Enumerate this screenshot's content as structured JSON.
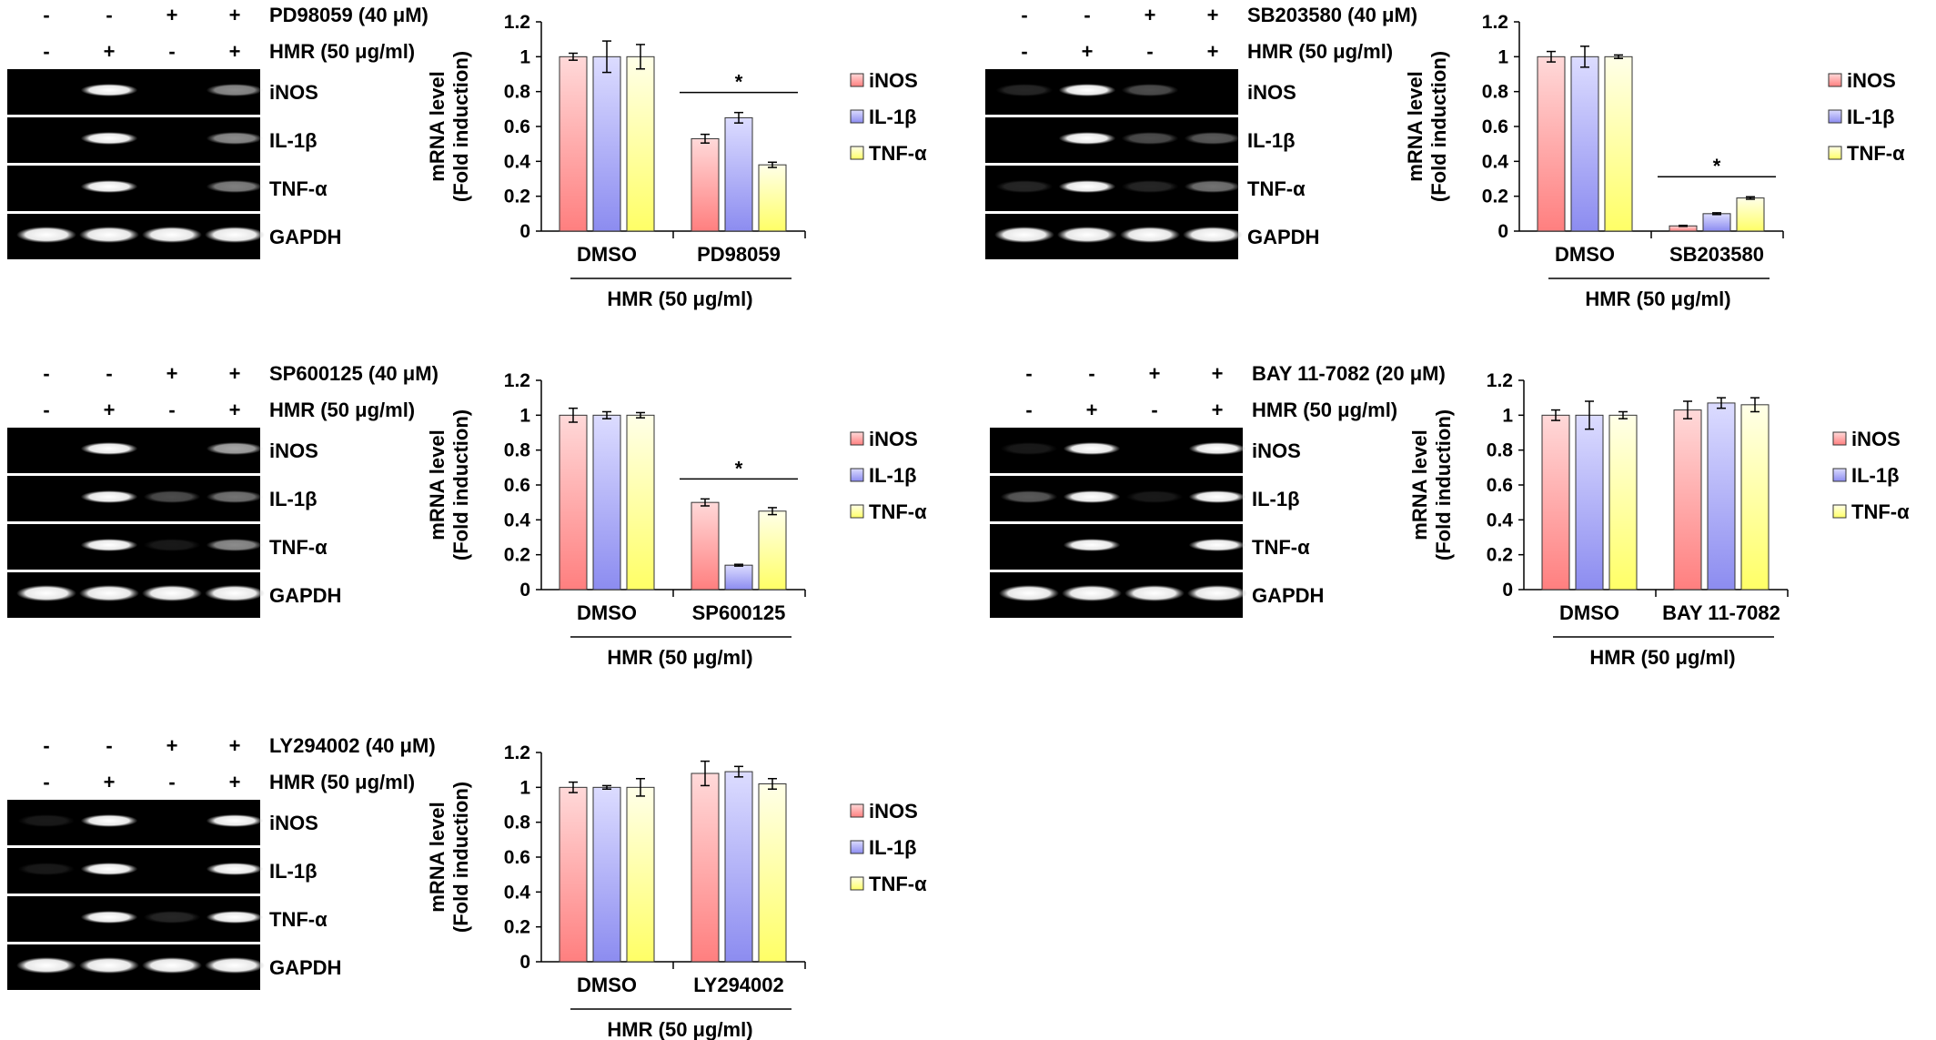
{
  "colors": {
    "iNOS_top": "#ffd9d9",
    "iNOS_bottom": "#ff7f7f",
    "IL1b_top": "#dcdcff",
    "IL1b_bottom": "#8c8cf0",
    "TNFa_top": "#ffffe8",
    "TNFa_bottom": "#ffff66",
    "gel_background": "#000000",
    "band": "#ffffff"
  },
  "treatment_signs": {
    "inhibitor": [
      "-",
      "-",
      "+",
      "+"
    ],
    "hmr": [
      "-",
      "+",
      "-",
      "+"
    ]
  },
  "common": {
    "hmr_label": "HMR (50 μg/ml)",
    "group_label": "HMR (50 μg/ml)",
    "ylabel_line1": "mRNA level",
    "ylabel_line2": "(Fold induction)",
    "gel_rows": [
      "iNOS",
      "IL-1β",
      "TNF-α",
      "GAPDH"
    ]
  },
  "panels": [
    {
      "inhibitor_label": "PD98059 (40 μM)",
      "band_intensity": [
        [
          0,
          1,
          0,
          0.55
        ],
        [
          0,
          1,
          0,
          0.55
        ],
        [
          0,
          1,
          0,
          0.5
        ],
        [
          1,
          1,
          1,
          1
        ]
      ],
      "chart_data": {
        "type": "bar",
        "categories": [
          "DMSO",
          "PD98059"
        ],
        "series": [
          {
            "name": "iNOS",
            "values": [
              1.0,
              0.53
            ],
            "errors": [
              0.02,
              0.025
            ]
          },
          {
            "name": "IL-1β",
            "values": [
              1.0,
              0.65
            ],
            "errors": [
              0.09,
              0.03
            ]
          },
          {
            "name": "TNF-α",
            "values": [
              1.0,
              0.38
            ],
            "errors": [
              0.07,
              0.015
            ]
          }
        ],
        "ylim": [
          0,
          1.2
        ],
        "yticks": [
          "0",
          "0.2",
          "0.4",
          "0.6",
          "0.8",
          "1",
          "1.2"
        ],
        "ylabel": "mRNA level (Fold induction)",
        "xlabel": "HMR (50 μg/ml)",
        "significance": {
          "category": 1,
          "mark": "*"
        },
        "legend": [
          "iNOS",
          "IL-1β",
          "TNF-α"
        ]
      }
    },
    {
      "inhibitor_label": "SB203580 (40 μM)",
      "band_intensity": [
        [
          0.15,
          1,
          0.3,
          0
        ],
        [
          0,
          1,
          0.3,
          0.35
        ],
        [
          0.15,
          1,
          0.15,
          0.45
        ],
        [
          1,
          1,
          1,
          1
        ]
      ],
      "chart_data": {
        "type": "bar",
        "categories": [
          "DMSO",
          "SB203580"
        ],
        "series": [
          {
            "name": "iNOS",
            "values": [
              1.0,
              0.03
            ],
            "errors": [
              0.03,
              0.003
            ]
          },
          {
            "name": "IL-1β",
            "values": [
              1.0,
              0.1
            ],
            "errors": [
              0.06,
              0.005
            ]
          },
          {
            "name": "TNF-α",
            "values": [
              1.0,
              0.19
            ],
            "errors": [
              0.01,
              0.007
            ]
          }
        ],
        "ylim": [
          0,
          1.2
        ],
        "yticks": [
          "0",
          "0.2",
          "0.4",
          "0.6",
          "0.8",
          "1",
          "1.2"
        ],
        "ylabel": "mRNA level (Fold induction)",
        "xlabel": "HMR (50 μg/ml)",
        "significance": {
          "category": 1,
          "mark": "*"
        },
        "legend": [
          "iNOS",
          "IL-1β",
          "TNF-α"
        ]
      }
    },
    {
      "inhibitor_label": "SP600125 (40 μM)",
      "band_intensity": [
        [
          0,
          1,
          0,
          0.65
        ],
        [
          0,
          1,
          0.3,
          0.45
        ],
        [
          0,
          1,
          0.1,
          0.55
        ],
        [
          1,
          1,
          1,
          1
        ]
      ],
      "chart_data": {
        "type": "bar",
        "categories": [
          "DMSO",
          "SP600125"
        ],
        "series": [
          {
            "name": "iNOS",
            "values": [
              1.0,
              0.5
            ],
            "errors": [
              0.04,
              0.02
            ]
          },
          {
            "name": "IL-1β",
            "values": [
              1.0,
              0.14
            ],
            "errors": [
              0.02,
              0.005
            ]
          },
          {
            "name": "TNF-α",
            "values": [
              1.0,
              0.45
            ],
            "errors": [
              0.015,
              0.02
            ]
          }
        ],
        "ylim": [
          0,
          1.2
        ],
        "yticks": [
          "0",
          "0.2",
          "0.4",
          "0.6",
          "0.8",
          "1",
          "1.2"
        ],
        "ylabel": "mRNA level (Fold induction)",
        "xlabel": "HMR (50 μg/ml)",
        "significance": {
          "category": 1,
          "mark": "*"
        },
        "legend": [
          "iNOS",
          "IL-1β",
          "TNF-α"
        ]
      }
    },
    {
      "inhibitor_label": "BAY 11-7082 (20 μM)",
      "band_intensity": [
        [
          0.1,
          1,
          0,
          1
        ],
        [
          0.35,
          1,
          0.1,
          1
        ],
        [
          0,
          1,
          0,
          1
        ],
        [
          1,
          1,
          1,
          1
        ]
      ],
      "chart_data": {
        "type": "bar",
        "categories": [
          "DMSO",
          "BAY 11-7082"
        ],
        "series": [
          {
            "name": "iNOS",
            "values": [
              1.0,
              1.03
            ],
            "errors": [
              0.03,
              0.05
            ]
          },
          {
            "name": "IL-1β",
            "values": [
              1.0,
              1.07
            ],
            "errors": [
              0.08,
              0.03
            ]
          },
          {
            "name": "TNF-α",
            "values": [
              1.0,
              1.06
            ],
            "errors": [
              0.02,
              0.04
            ]
          }
        ],
        "ylim": [
          0,
          1.2
        ],
        "yticks": [
          "0",
          "0.2",
          "0.4",
          "0.6",
          "0.8",
          "1",
          "1.2"
        ],
        "ylabel": "mRNA level (Fold induction)",
        "xlabel": "HMR (50 μg/ml)",
        "significance": null,
        "legend": [
          "iNOS",
          "IL-1β",
          "TNF-α"
        ]
      }
    },
    {
      "inhibitor_label": "LY294002 (40 μM)",
      "band_intensity": [
        [
          0.1,
          1,
          0,
          1
        ],
        [
          0.1,
          1,
          0,
          1
        ],
        [
          0,
          1,
          0.15,
          1
        ],
        [
          1,
          1,
          1,
          1
        ]
      ],
      "chart_data": {
        "type": "bar",
        "categories": [
          "DMSO",
          "LY294002"
        ],
        "series": [
          {
            "name": "iNOS",
            "values": [
              1.0,
              1.08
            ],
            "errors": [
              0.03,
              0.07
            ]
          },
          {
            "name": "IL-1β",
            "values": [
              1.0,
              1.09
            ],
            "errors": [
              0.01,
              0.03
            ]
          },
          {
            "name": "TNF-α",
            "values": [
              1.0,
              1.02
            ],
            "errors": [
              0.05,
              0.03
            ]
          }
        ],
        "ylim": [
          0,
          1.2
        ],
        "yticks": [
          "0",
          "0.2",
          "0.4",
          "0.6",
          "0.8",
          "1",
          "1.2"
        ],
        "ylabel": "mRNA level (Fold induction)",
        "xlabel": "HMR (50 μg/ml)",
        "significance": null,
        "legend": [
          "iNOS",
          "IL-1β",
          "TNF-α"
        ]
      }
    }
  ]
}
